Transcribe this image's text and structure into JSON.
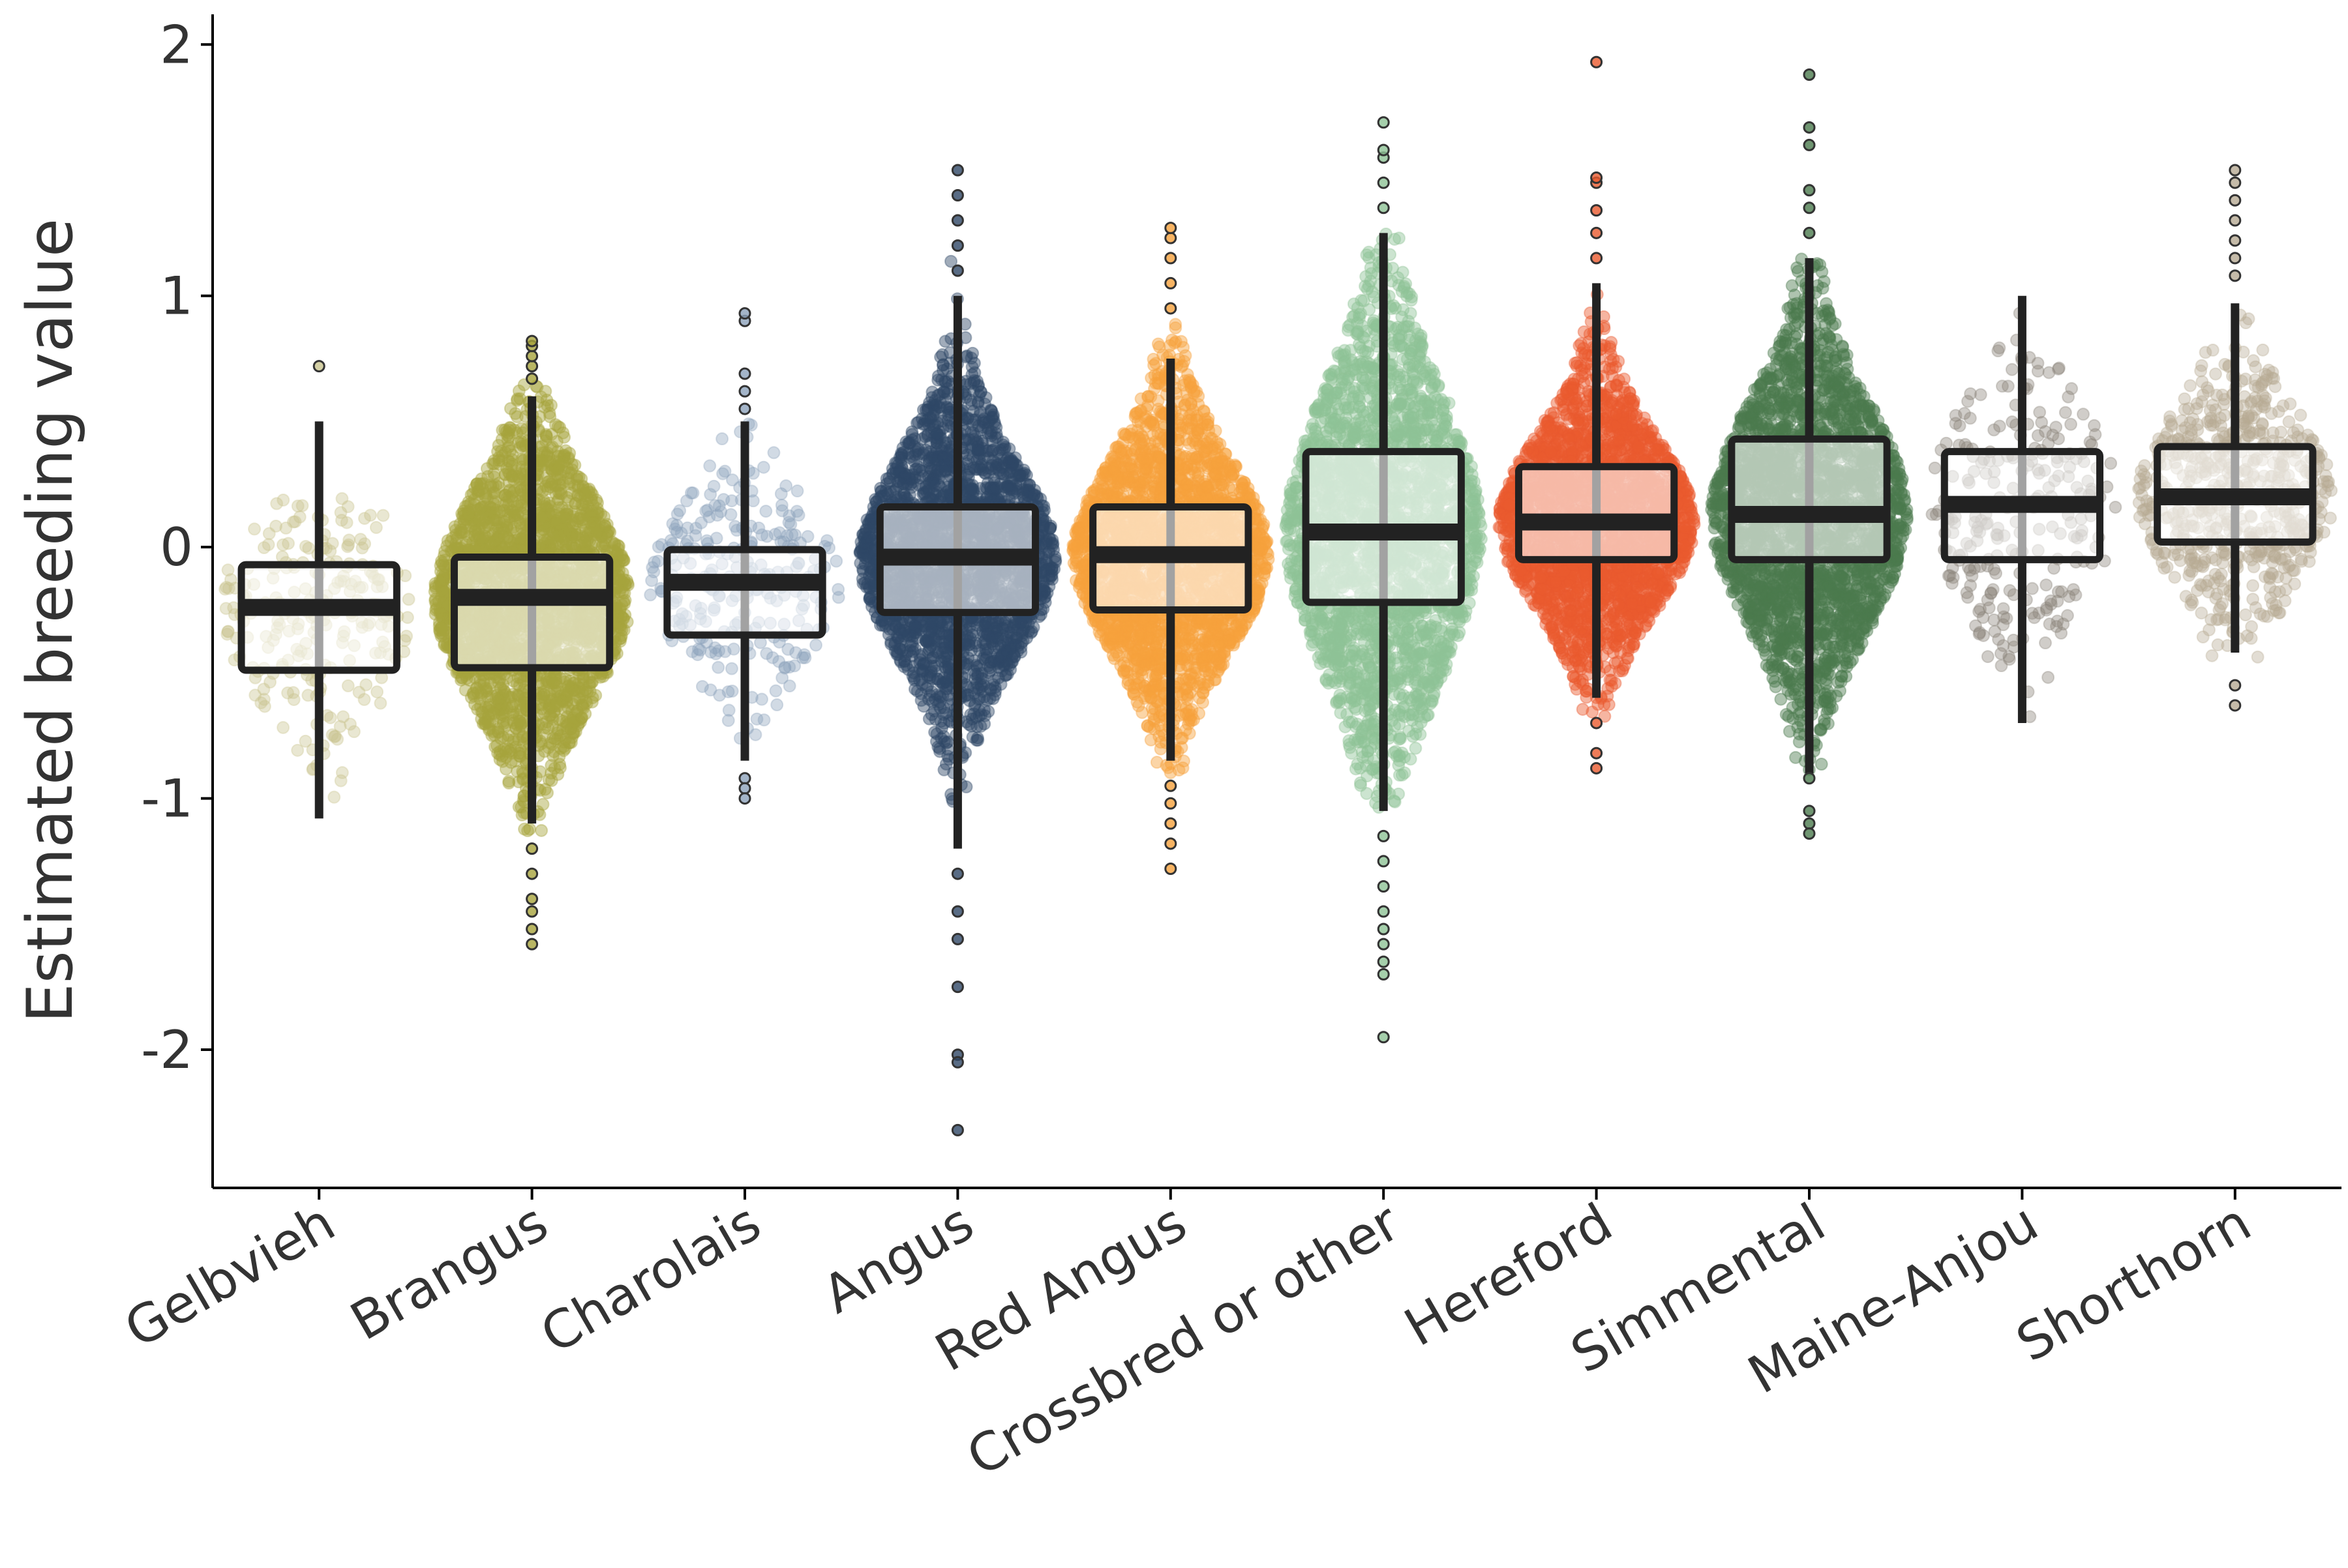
{
  "chart_data": {
    "type": "boxplot",
    "ylabel": "Estimated breeding value",
    "xlabel": "",
    "ylim": [
      -2.55,
      2.12
    ],
    "yticks": [
      -2,
      -1,
      0,
      1,
      2
    ],
    "ytick_labels": [
      "-2",
      "-1",
      "0",
      "1",
      "2"
    ],
    "grid": false,
    "legend": "none",
    "categories": [
      "Gelbvieh",
      "Brangus",
      "Charolais",
      "Angus",
      "Red Angus",
      "Crossbred or other",
      "Hereford",
      "Simmental",
      "Maine-Anjou",
      "Shorthorn"
    ],
    "series": [
      {
        "category": "Gelbvieh",
        "color": "#c9c48e",
        "density": "low",
        "q1": -0.49,
        "median": -0.24,
        "q3": -0.07,
        "whisker_low": -1.08,
        "whisker_high": 0.5,
        "cloud_low": -1.1,
        "cloud_high": 0.2,
        "outliers": [
          0.72
        ]
      },
      {
        "category": "Brangus",
        "color": "#a7a43c",
        "density": "high",
        "q1": -0.48,
        "median": -0.2,
        "q3": -0.04,
        "whisker_low": -1.1,
        "whisker_high": 0.6,
        "cloud_low": -1.15,
        "cloud_high": 0.65,
        "outliers": [
          0.67,
          0.72,
          0.76,
          0.8,
          0.82,
          -1.2,
          -1.3,
          -1.4,
          -1.45,
          -1.52,
          -1.58
        ]
      },
      {
        "category": "Charolais",
        "color": "#8da3bb",
        "density": "low",
        "q1": -0.35,
        "median": -0.14,
        "q3": -0.01,
        "whisker_low": -0.85,
        "whisker_high": 0.5,
        "cloud_low": -0.9,
        "cloud_high": 0.5,
        "outliers": [
          0.55,
          0.62,
          0.69,
          0.9,
          0.93,
          -0.92,
          -0.96,
          -1.0
        ]
      },
      {
        "category": "Angus",
        "color": "#2f4766",
        "density": "high",
        "q1": -0.26,
        "median": -0.04,
        "q3": 0.16,
        "whisker_low": -1.2,
        "whisker_high": 1.0,
        "cloud_low": -1.55,
        "cloud_high": 1.5,
        "outliers": [
          1.1,
          1.2,
          1.3,
          1.4,
          1.5,
          -1.3,
          -1.45,
          -1.56,
          -1.75,
          -2.02,
          -2.05,
          -2.32
        ]
      },
      {
        "category": "Red Angus",
        "color": "#f6a13c",
        "density": "high",
        "q1": -0.25,
        "median": -0.03,
        "q3": 0.16,
        "whisker_low": -0.85,
        "whisker_high": 0.75,
        "cloud_low": -0.9,
        "cloud_high": 0.9,
        "outliers": [
          0.95,
          1.05,
          1.15,
          1.23,
          1.27,
          -0.95,
          -1.02,
          -1.1,
          -1.18,
          -1.28
        ]
      },
      {
        "category": "Crossbred or other",
        "color": "#8fc396",
        "density": "high",
        "q1": -0.22,
        "median": 0.06,
        "q3": 0.38,
        "whisker_low": -1.05,
        "whisker_high": 1.25,
        "cloud_low": -1.05,
        "cloud_high": 1.25,
        "outliers": [
          1.35,
          1.45,
          1.55,
          1.58,
          1.69,
          -1.15,
          -1.25,
          -1.35,
          -1.45,
          -1.52,
          -1.58,
          -1.65,
          -1.7,
          -1.95
        ]
      },
      {
        "category": "Hereford",
        "color": "#ea5a2e",
        "density": "high",
        "q1": -0.05,
        "median": 0.1,
        "q3": 0.32,
        "whisker_low": -0.6,
        "whisker_high": 1.05,
        "cloud_low": -0.7,
        "cloud_high": 1.1,
        "outliers": [
          1.15,
          1.25,
          1.34,
          1.45,
          1.47,
          1.93,
          -0.7,
          -0.82,
          -0.88
        ]
      },
      {
        "category": "Simmental",
        "color": "#4b7a4e",
        "density": "high",
        "q1": -0.05,
        "median": 0.13,
        "q3": 0.43,
        "whisker_low": -0.9,
        "whisker_high": 1.15,
        "cloud_low": -0.9,
        "cloud_high": 1.15,
        "outliers": [
          1.25,
          1.35,
          1.42,
          1.6,
          1.67,
          1.88,
          -0.92,
          -1.05,
          -1.1,
          -1.14
        ]
      },
      {
        "category": "Maine-Anjou",
        "color": "#8a8279",
        "density": "low",
        "q1": -0.05,
        "median": 0.17,
        "q3": 0.38,
        "whisker_low": -0.7,
        "whisker_high": 1.0,
        "cloud_low": -0.7,
        "cloud_high": 0.95,
        "outliers": []
      },
      {
        "category": "Shorthorn",
        "color": "#b7aa93",
        "density": "med",
        "q1": 0.02,
        "median": 0.2,
        "q3": 0.4,
        "whisker_low": -0.42,
        "whisker_high": 0.97,
        "cloud_low": -0.45,
        "cloud_high": 1.0,
        "outliers": [
          1.08,
          1.15,
          1.22,
          1.3,
          1.38,
          1.45,
          1.5,
          -0.55,
          -0.63
        ]
      }
    ]
  }
}
